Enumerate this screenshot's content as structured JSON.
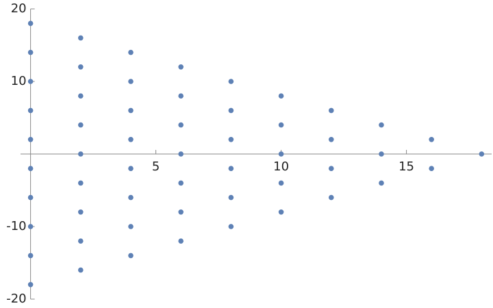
{
  "chart_data": {
    "type": "scatter",
    "color": "#5e81b5",
    "x": [
      0,
      0,
      0,
      0,
      0,
      0,
      0,
      0,
      0,
      0,
      2,
      2,
      2,
      2,
      2,
      2,
      2,
      2,
      2,
      4,
      4,
      4,
      4,
      4,
      4,
      4,
      4,
      6,
      6,
      6,
      6,
      6,
      6,
      6,
      8,
      8,
      8,
      8,
      8,
      8,
      10,
      10,
      10,
      10,
      10,
      12,
      12,
      12,
      12,
      14,
      14,
      14,
      16,
      16,
      18
    ],
    "values": [
      18,
      14,
      10,
      6,
      2,
      -2,
      -6,
      -10,
      -14,
      -18,
      16,
      12,
      8,
      4,
      0,
      -4,
      -8,
      -12,
      -16,
      14,
      10,
      6,
      2,
      -2,
      -6,
      -10,
      -14,
      12,
      8,
      4,
      0,
      -4,
      -8,
      -12,
      10,
      6,
      2,
      -2,
      -6,
      -10,
      8,
      4,
      0,
      -4,
      -8,
      6,
      2,
      -2,
      -6,
      4,
      0,
      -4,
      2,
      -2,
      0
    ],
    "xlim": [
      -0.4,
      18.4
    ],
    "ylim": [
      -20,
      20
    ],
    "xticks": [
      5,
      10,
      15
    ],
    "yticks": [
      -20,
      -10,
      10,
      20
    ]
  }
}
